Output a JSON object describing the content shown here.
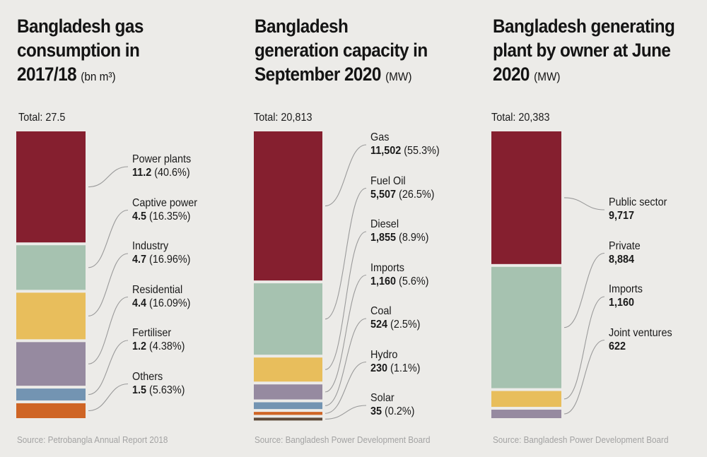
{
  "chart_data": [
    {
      "type": "bar",
      "subtype": "stacked-single-column",
      "title": "Bangladesh gas consumption in 2017/18",
      "unit": "(bn m³)",
      "total_label": "Total: 27.5",
      "total": 27.5,
      "source": "Source: Petrobangla Annual Report 2018",
      "categories": [
        "Power plants",
        "Captive power",
        "Industry",
        "Residential",
        "Fertiliser",
        "Others"
      ],
      "values": [
        11.2,
        4.5,
        4.7,
        4.4,
        1.2,
        1.5
      ],
      "value_labels": [
        "11.2",
        "4.5",
        "4.7",
        "4.4",
        "1.2",
        "1.5"
      ],
      "percent_labels": [
        "(40.6%)",
        "(16.35%)",
        "(16.96%)",
        "(16.09%)",
        "(4.38%)",
        "(5.63%)"
      ],
      "colors": [
        "#851f2f",
        "#a6c2b0",
        "#e8be5c",
        "#968aa0",
        "#7394b2",
        "#cf6525"
      ]
    },
    {
      "type": "bar",
      "subtype": "stacked-single-column",
      "title": "Bangladesh generation capacity in September 2020",
      "unit": "(MW)",
      "total_label": "Total: 20,813",
      "total": 20813,
      "source": "Source: Bangladesh Power Development Board",
      "categories": [
        "Gas",
        "Fuel Oil",
        "Diesel",
        "Imports",
        "Coal",
        "Hydro",
        "Solar"
      ],
      "values": [
        11502,
        5507,
        1855,
        1160,
        524,
        230,
        35
      ],
      "value_labels": [
        "11,502",
        "5,507",
        "1,855",
        "1,160",
        "524",
        "230",
        "35"
      ],
      "percent_labels": [
        "(55.3%)",
        "(26.5%)",
        "(8.9%)",
        "(5.6%)",
        "(2.5%)",
        "(1.1%)",
        "(0.2%)"
      ],
      "colors": [
        "#851f2f",
        "#a6c2b0",
        "#e8be5c",
        "#968aa0",
        "#7394b2",
        "#cf6525",
        "#5e4a3a"
      ]
    },
    {
      "type": "bar",
      "subtype": "stacked-single-column",
      "title": "Bangladesh generating plant by owner at June 2020",
      "unit": "(MW)",
      "total_label": "Total: 20,383",
      "total": 20383,
      "source": "Source: Bangladesh Power Development Board",
      "categories": [
        "Public sector",
        "Private",
        "Imports",
        "Joint ventures"
      ],
      "values": [
        9717,
        8884,
        1160,
        622
      ],
      "value_labels": [
        "9,717",
        "8,884",
        "1,160",
        "622"
      ],
      "percent_labels": [
        "",
        "",
        "",
        ""
      ],
      "colors": [
        "#851f2f",
        "#a6c2b0",
        "#e8be5c",
        "#968aa0"
      ]
    }
  ],
  "panels": [
    {
      "title_lines": [
        "Bangladesh gas",
        "consumption in",
        "2017/18"
      ],
      "unit": "(bn m³)",
      "total_label": "Total: 27.5",
      "source": "Source: Petrobangla Annual Report 2018"
    },
    {
      "title_lines": [
        "Bangladesh",
        "generation capacity in",
        "September 2020"
      ],
      "unit": "(MW)",
      "total_label": "Total: 20,813",
      "source": "Source: Bangladesh Power Development Board"
    },
    {
      "title_lines": [
        "Bangladesh generating",
        "plant by owner at June",
        "2020"
      ],
      "unit": "(MW)",
      "total_label": "Total: 20,383",
      "source": "Source: Bangladesh Power Development Board"
    }
  ]
}
